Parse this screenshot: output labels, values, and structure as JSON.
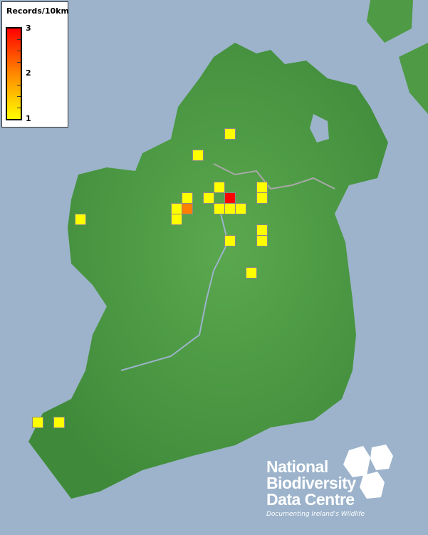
{
  "legend": {
    "title": "Records/10km",
    "max_label": "3",
    "mid_label": "2",
    "min_label": "1",
    "colors": {
      "low": "#ffff00",
      "mid": "#ff8000",
      "high": "#ff0000"
    }
  },
  "logo": {
    "line1": "National",
    "line2": "Biodiversity",
    "line3": "Data Centre",
    "tagline": "Documenting Ireland's Wildlife"
  },
  "colors": {
    "sea": "#9cb3cb",
    "land": "#4f9a45",
    "rivers": "#9cb3cb",
    "border": "#a8a8a8"
  },
  "squares": [
    1,
    1,
    1,
    1,
    1,
    1,
    3,
    1,
    1,
    2,
    1,
    1,
    1,
    1,
    1,
    1,
    1,
    1,
    1,
    1,
    1,
    1,
    1
  ]
}
